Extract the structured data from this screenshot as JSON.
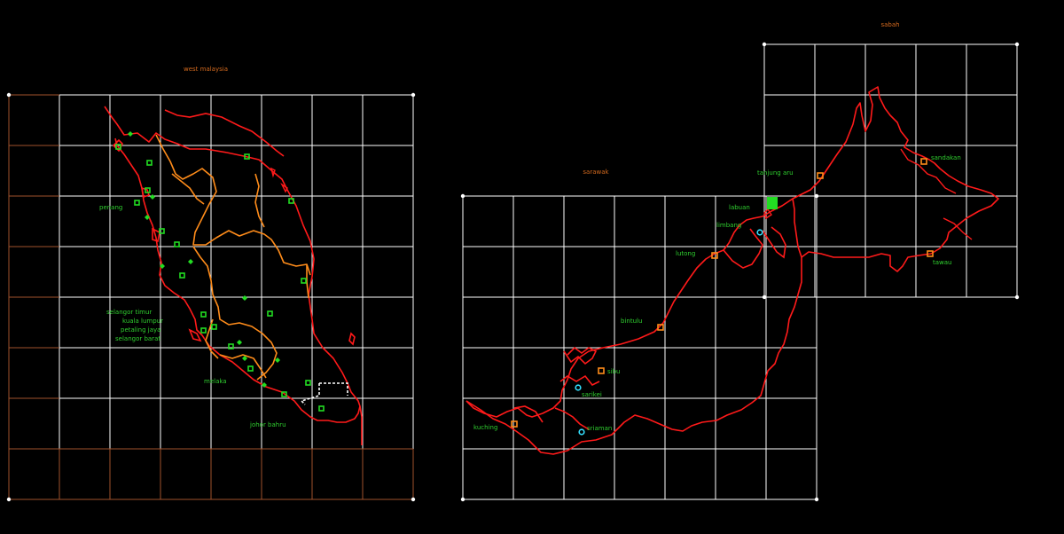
{
  "regions": {
    "west_malaysia": "west malaysia",
    "sarawak": "sarawak",
    "sabah": "sabah"
  },
  "places": {
    "penang": "penang",
    "selangor_timur": "selangor timur",
    "kuala_lumpur": "kuala lumpur",
    "petaling_jaya": "petaling jaya",
    "selangor_barat": "selangor barat",
    "melaka": "melaka",
    "johor_bahru": "johor bahru",
    "kuching": "kuching",
    "sriaman": "sriaman",
    "sarikei": "sarikei",
    "sibu": "sibu",
    "bintulu": "bintulu",
    "lutong": "lutong",
    "limbang": "limbang",
    "labuan": "labuan",
    "tanjung_aru": "tanjung aru",
    "sandakan": "sandakan",
    "tawau": "tawau"
  },
  "colors": {
    "background": "#000000",
    "grid": "#ffffff",
    "grid_outer": "#a0522d",
    "coastline": "#ff1a1a",
    "state_border": "#ff8c1a",
    "west_markers": "#22dd22",
    "east_markers": "#ff8c1a",
    "cyan_markers": "#33e0ff",
    "region_labels": "#d2691e",
    "place_labels": "#2fcf2f",
    "singapore_border": "#ffffff"
  }
}
